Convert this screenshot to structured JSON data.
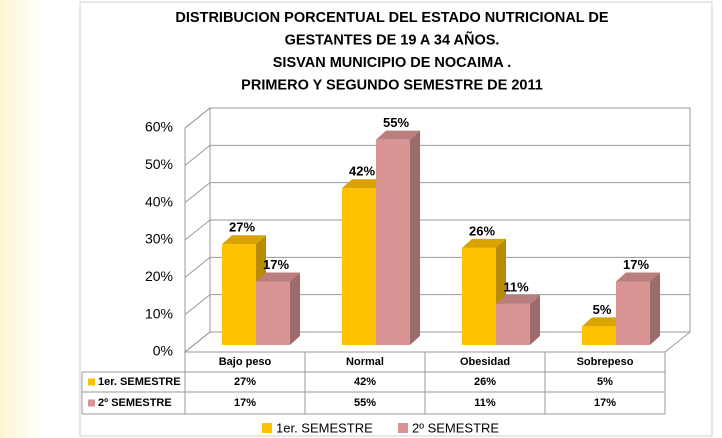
{
  "chart_data": {
    "type": "bar",
    "title": [
      "DISTRIBUCION PORCENTUAL DEL ESTADO NUTRICIONAL DE",
      "GESTANTES  DE 19  A 34 AÑOS.",
      "SISVAN MUNICIPIO DE NOCAIMA .",
      "PRIMERO Y SEGUNDO SEMESTRE DE 2011"
    ],
    "categories": [
      "Bajo peso",
      "Normal",
      "Obesidad",
      "Sobrepeso"
    ],
    "series": [
      {
        "name": "1er. SEMESTRE",
        "color": "#FFC000",
        "values": [
          27,
          42,
          26,
          5
        ],
        "value_labels": [
          "27%",
          "42%",
          "26%",
          "5%"
        ]
      },
      {
        "name": "2º SEMESTRE",
        "color": "#D99594",
        "values": [
          17,
          55,
          11,
          17
        ],
        "value_labels": [
          "17%",
          "55%",
          "11%",
          "17%"
        ]
      }
    ],
    "ylim": [
      0,
      60
    ],
    "yticks": [
      {
        "value": 0,
        "label": "0%"
      },
      {
        "value": 10,
        "label": "10%"
      },
      {
        "value": 20,
        "label": "20%"
      },
      {
        "value": 30,
        "label": "30%"
      },
      {
        "value": 40,
        "label": "40%"
      },
      {
        "value": 50,
        "label": "50%"
      },
      {
        "value": 60,
        "label": "60%"
      }
    ],
    "grid": true,
    "legend": "bottom",
    "data_table": true
  }
}
